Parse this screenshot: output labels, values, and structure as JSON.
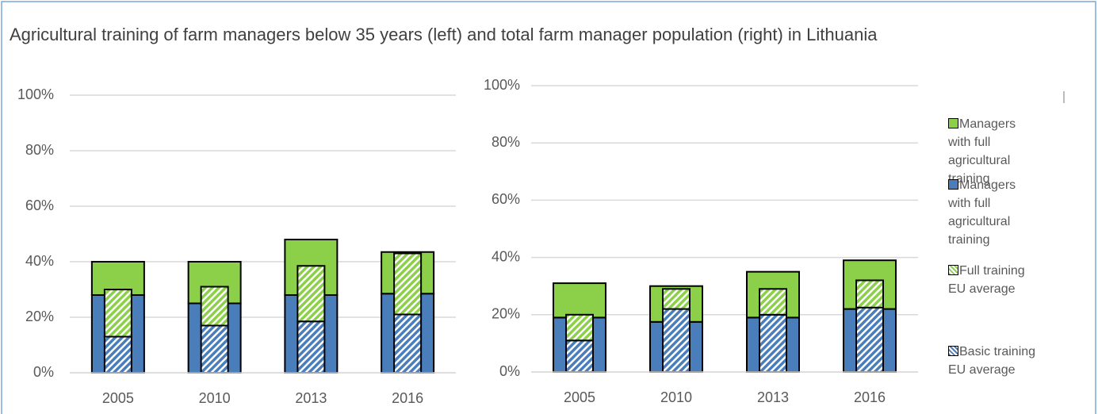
{
  "title": "Agricultural training of farm managers below 35 years (left) and total farm manager population (right) in Lithuania",
  "chart_data": [
    {
      "type": "bar",
      "stacked": true,
      "categories": [
        "2005",
        "2010",
        "2013",
        "2016"
      ],
      "series": [
        {
          "name": "Managers with full agricultural training",
          "color": "#4a7ebb",
          "hatch": false,
          "values": [
            28,
            25,
            28,
            28.5
          ]
        },
        {
          "name": "Managers with full agricultural training",
          "color": "#8cd04a",
          "hatch": false,
          "values": [
            12,
            15,
            20,
            15
          ]
        },
        {
          "name": "Basic training EU average",
          "color": "#4a7ebb",
          "hatch": true,
          "values": [
            13,
            17,
            18.5,
            21
          ]
        },
        {
          "name": "Full training EU average",
          "color": "#8cd04a",
          "hatch": true,
          "values": [
            17,
            14,
            20,
            22
          ]
        }
      ],
      "ylim": [
        0,
        100
      ],
      "yticks": [
        {
          "value": 0,
          "label": "0%"
        },
        {
          "value": 20,
          "label": "20%"
        },
        {
          "value": 40,
          "label": "40%"
        },
        {
          "value": 60,
          "label": "60%"
        },
        {
          "value": 80,
          "label": "80%"
        },
        {
          "value": 100,
          "label": "100%"
        }
      ],
      "grid": true
    },
    {
      "type": "bar",
      "stacked": true,
      "categories": [
        "2005",
        "2010",
        "2013",
        "2016"
      ],
      "series": [
        {
          "color": "#4a7ebb",
          "hatch": false,
          "values": [
            19,
            17.5,
            19,
            22
          ]
        },
        {
          "color": "#8cd04a",
          "hatch": false,
          "values": [
            12,
            12.5,
            16,
            17
          ]
        },
        {
          "color": "#4a7ebb",
          "hatch": true,
          "values": [
            11,
            22,
            20,
            22.5
          ]
        },
        {
          "color": "#8cd04a",
          "hatch": true,
          "values": [
            9,
            7,
            9,
            9.5
          ]
        }
      ],
      "ylim": [
        0,
        100
      ],
      "yticks": [
        {
          "value": 0,
          "label": "0%"
        },
        {
          "value": 20,
          "label": "20%"
        },
        {
          "value": 40,
          "label": "40%"
        },
        {
          "value": 60,
          "label": "60%"
        },
        {
          "value": 80,
          "label": "80%"
        },
        {
          "value": 100,
          "label": "100%"
        }
      ],
      "grid": true
    }
  ]
}
